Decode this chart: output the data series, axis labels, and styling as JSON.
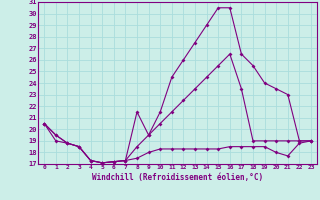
{
  "xlabel": "Windchill (Refroidissement éolien,°C)",
  "background_color": "#cceee8",
  "grid_color": "#aadddd",
  "line_color": "#800080",
  "ylim": [
    17,
    31
  ],
  "xlim": [
    -0.5,
    23.5
  ],
  "yticks": [
    17,
    18,
    19,
    20,
    21,
    22,
    23,
    24,
    25,
    26,
    27,
    28,
    29,
    30,
    31
  ],
  "xticks": [
    0,
    1,
    2,
    3,
    4,
    5,
    6,
    7,
    8,
    9,
    10,
    11,
    12,
    13,
    14,
    15,
    16,
    17,
    18,
    19,
    20,
    21,
    22,
    23
  ],
  "line1_x": [
    0,
    1,
    2,
    3,
    4,
    5,
    6,
    7,
    8,
    9,
    10,
    11,
    12,
    13,
    14,
    15,
    16,
    17,
    18,
    19,
    20,
    21,
    22,
    23
  ],
  "line1_y": [
    20.5,
    19.5,
    18.8,
    18.5,
    17.3,
    17.1,
    17.2,
    17.3,
    21.5,
    19.5,
    21.5,
    24.5,
    26.0,
    27.5,
    29.0,
    30.5,
    30.5,
    26.5,
    25.5,
    24.0,
    23.5,
    23.0,
    19.0,
    19.0
  ],
  "line2_x": [
    0,
    1,
    2,
    3,
    4,
    5,
    6,
    7,
    8,
    9,
    10,
    11,
    12,
    13,
    14,
    15,
    16,
    17,
    18,
    19,
    20,
    21,
    22,
    23
  ],
  "line2_y": [
    20.5,
    19.5,
    18.8,
    18.5,
    17.3,
    17.1,
    17.2,
    17.3,
    18.5,
    19.5,
    20.5,
    21.5,
    22.5,
    23.5,
    24.5,
    25.5,
    26.5,
    23.5,
    19.0,
    19.0,
    19.0,
    19.0,
    19.0,
    19.0
  ],
  "line3_x": [
    0,
    1,
    2,
    3,
    4,
    5,
    6,
    7,
    8,
    9,
    10,
    11,
    12,
    13,
    14,
    15,
    16,
    17,
    18,
    19,
    20,
    21,
    22,
    23
  ],
  "line3_y": [
    20.5,
    19.0,
    18.8,
    18.5,
    17.3,
    17.1,
    17.2,
    17.3,
    17.5,
    18.0,
    18.3,
    18.3,
    18.3,
    18.3,
    18.3,
    18.3,
    18.5,
    18.5,
    18.5,
    18.5,
    18.0,
    17.7,
    18.8,
    19.0
  ],
  "marker": "D",
  "markersize": 2.0
}
